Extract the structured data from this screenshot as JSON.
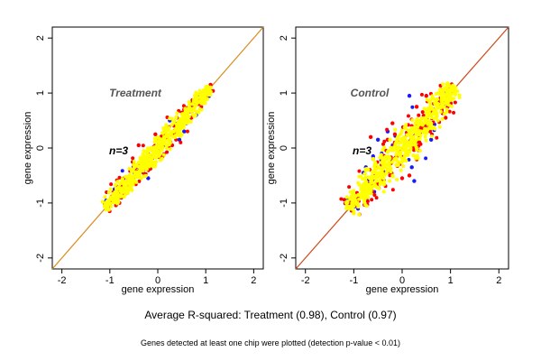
{
  "caption": "Average R-squared: Treatment (0.98), Control (0.97)",
  "footnote": "Genes detected at least one chip were plotted (detection p-value < 0.01)",
  "colors": {
    "diagonal": "#d98a1a",
    "diagonal_control": "#cc4a1a",
    "blue": "#1a1aff",
    "red": "#ff0000",
    "yellow": "#ffff00",
    "label": "#555555"
  },
  "chart_data": [
    {
      "type": "scatter",
      "title": "Treatment",
      "annotation": "n=3",
      "xlabel": "gene expression",
      "ylabel": "gene expression",
      "xlim": [
        -2.2,
        2.2
      ],
      "ylim": [
        -2.2,
        2.2
      ],
      "xticks": [
        -2,
        -1,
        0,
        1,
        2
      ],
      "yticks": [
        -2,
        -1,
        0,
        1,
        2
      ],
      "diagonal": {
        "x": [
          -2.2,
          2.2
        ],
        "y": [
          -2.2,
          2.2
        ]
      },
      "grid": false,
      "series": [
        {
          "color": "blue",
          "x": [
            -1.05,
            -0.9,
            -0.7,
            0.35,
            0.55,
            0.8,
            0.45,
            -0.2,
            0.25,
            0.6
          ],
          "y": [
            -1.0,
            -0.75,
            -0.7,
            0.45,
            0.3,
            0.6,
            0.15,
            -0.55,
            0.5,
            0.45
          ]
        },
        {
          "color": "red",
          "x": [
            -1.0,
            -0.85,
            -0.55,
            -0.5,
            -0.3,
            -0.05,
            0.2,
            0.4,
            0.55,
            0.7,
            0.85,
            1.0,
            1.1,
            -0.4,
            0.1,
            0.3
          ],
          "y": [
            -0.95,
            -0.8,
            -0.65,
            -0.3,
            -0.45,
            0.25,
            0.35,
            0.55,
            0.7,
            0.55,
            0.8,
            0.95,
            1.15,
            0.05,
            -0.15,
            0.05
          ]
        },
        {
          "color": "yellow",
          "x": [
            -1.1,
            -0.9,
            -0.7,
            -0.5,
            -0.3,
            -0.1,
            0.1,
            0.3,
            0.5,
            0.7,
            0.9,
            1.1
          ],
          "y": [
            -1.05,
            -0.85,
            -0.7,
            -0.5,
            -0.3,
            -0.1,
            0.1,
            0.3,
            0.5,
            0.7,
            0.9,
            1.1
          ]
        }
      ]
    },
    {
      "type": "scatter",
      "title": "Control",
      "annotation": "n=3",
      "xlabel": "gene expression",
      "ylabel": "gene expression",
      "xlim": [
        -2.2,
        2.2
      ],
      "ylim": [
        -2.2,
        2.2
      ],
      "xticks": [
        -2,
        -1,
        0,
        1,
        2
      ],
      "yticks": [
        -2,
        -1,
        0,
        1,
        2
      ],
      "diagonal": {
        "x": [
          -2.2,
          2.2
        ],
        "y": [
          -2.2,
          2.2
        ]
      },
      "grid": false,
      "series": [
        {
          "color": "blue",
          "x": [
            -0.8,
            -0.75,
            -0.6,
            -0.5,
            -0.3,
            0.2,
            0.25,
            0.6,
            0.75,
            0.15,
            0.05
          ],
          "y": [
            -0.45,
            -0.35,
            -0.15,
            0.15,
            0.3,
            -0.35,
            -0.6,
            0.15,
            0.75,
            0.95,
            -0.15
          ]
        },
        {
          "color": "red",
          "x": [
            -1.1,
            -0.9,
            -0.7,
            -0.6,
            -0.4,
            -0.3,
            -0.15,
            0.0,
            0.15,
            0.3,
            0.45,
            0.5,
            0.65,
            0.8,
            0.9,
            1.0,
            -0.65,
            -0.2,
            0.3,
            -0.5
          ],
          "y": [
            -1.0,
            -0.9,
            -0.65,
            -0.2,
            -0.4,
            0.15,
            0.25,
            -0.55,
            -0.5,
            -0.2,
            0.35,
            0.95,
            0.7,
            0.85,
            0.55,
            1.0,
            0.2,
            0.45,
            0.75,
            -0.65
          ]
        },
        {
          "color": "yellow",
          "x": [
            -1.15,
            -0.9,
            -0.7,
            -0.5,
            -0.3,
            -0.1,
            0.1,
            0.3,
            0.5,
            0.7,
            0.9,
            1.1,
            -0.6,
            -0.25
          ],
          "y": [
            -1.1,
            -0.85,
            -0.7,
            -0.5,
            -0.3,
            -0.1,
            0.1,
            0.3,
            0.5,
            0.7,
            0.9,
            1.1,
            -0.2,
            0.15
          ]
        }
      ]
    }
  ]
}
